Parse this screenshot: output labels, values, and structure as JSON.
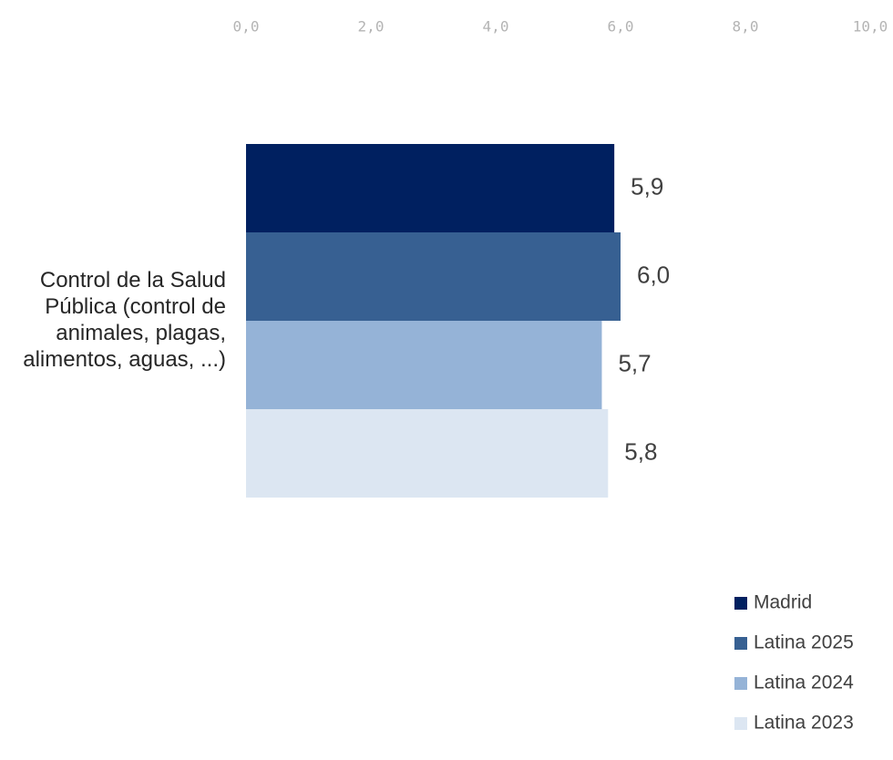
{
  "chart_data": {
    "type": "bar",
    "orientation": "horizontal",
    "categories": [
      "Control de la Salud Pública (control de animales, plagas, alimentos, aguas, ...)"
    ],
    "category_lines": [
      "Control de la Salud",
      "Pública (control de",
      "animales, plagas,",
      "alimentos, aguas, ...)"
    ],
    "series": [
      {
        "name": "Madrid",
        "values": [
          5.9
        ],
        "value_labels": [
          "5,9"
        ],
        "color": "#002060"
      },
      {
        "name": "Latina 2025",
        "values": [
          6.0
        ],
        "value_labels": [
          "6,0"
        ],
        "color": "#376092"
      },
      {
        "name": "Latina 2024",
        "values": [
          5.7
        ],
        "value_labels": [
          "5,7"
        ],
        "color": "#95B3D7"
      },
      {
        "name": "Latina 2023",
        "values": [
          5.8
        ],
        "value_labels": [
          "5,8"
        ],
        "color": "#DCE6F2"
      }
    ],
    "x_ticks": [
      0,
      2,
      4,
      6,
      8,
      10
    ],
    "x_tick_labels": [
      "0,0",
      "2,0",
      "4,0",
      "6,0",
      "8,0",
      "10,0"
    ],
    "xlim": [
      0,
      10
    ],
    "x_axis_position": "top",
    "grid": false,
    "legend_position": "bottom-right",
    "colors": {
      "tick_label": "#b4b4b4",
      "category_label": "#262626",
      "data_label": "#404040"
    }
  }
}
